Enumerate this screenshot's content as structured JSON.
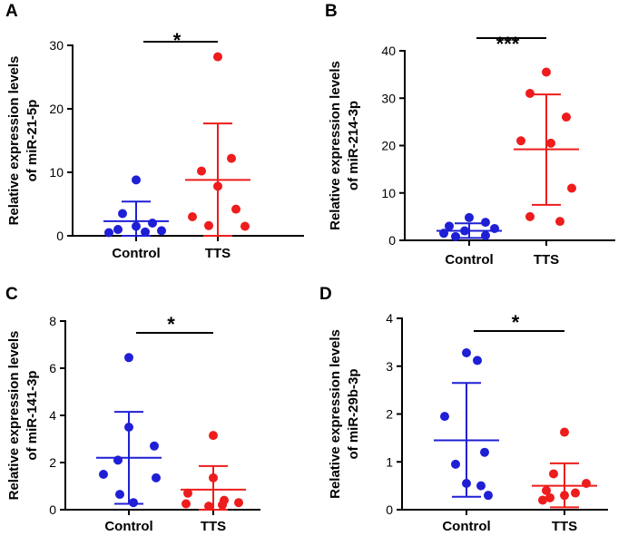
{
  "figure": {
    "panels": [
      "A",
      "B",
      "C",
      "D"
    ]
  },
  "colors": {
    "control": "#1f1fd6",
    "tts": "#ee1c1c"
  },
  "chart_data": [
    {
      "panel": "A",
      "type": "scatter",
      "ylabel_line1": "Relative expression levels",
      "ylabel_line2": "of miR-21-5p",
      "categories": [
        "Control",
        "TTS"
      ],
      "ylim": [
        0,
        30
      ],
      "yticks": [
        0,
        10,
        20,
        30
      ],
      "significance": "*",
      "series": [
        {
          "name": "Control",
          "values": [
            8.8,
            3.5,
            2.0,
            1.5,
            1.0,
            0.8,
            0.6,
            0.5
          ],
          "mean": 2.3,
          "sd_low": 0.0,
          "sd_high": 5.4
        },
        {
          "name": "TTS",
          "values": [
            28.2,
            12.2,
            10.2,
            7.8,
            4.2,
            3.0,
            1.6,
            1.5
          ],
          "mean": 8.8,
          "sd_low": 0.0,
          "sd_high": 17.7
        }
      ]
    },
    {
      "panel": "B",
      "type": "scatter",
      "ylabel_line1": "Relative expression levels",
      "ylabel_line2": "of miR-214-3p",
      "categories": [
        "Control",
        "TTS"
      ],
      "ylim": [
        0,
        40
      ],
      "yticks": [
        0,
        10,
        20,
        30,
        40
      ],
      "significance": "***",
      "series": [
        {
          "name": "Control",
          "values": [
            4.8,
            3.8,
            3.0,
            2.5,
            2.0,
            1.5,
            1.0,
            0.8
          ],
          "mean": 2.0,
          "sd_low": 0.5,
          "sd_high": 3.6
        },
        {
          "name": "TTS",
          "values": [
            35.5,
            31.0,
            26.0,
            21.0,
            20.5,
            11.0,
            5.0,
            4.0
          ],
          "mean": 19.2,
          "sd_low": 7.5,
          "sd_high": 30.8
        }
      ]
    },
    {
      "panel": "C",
      "type": "scatter",
      "ylabel_line1": "Relative expression levels",
      "ylabel_line2": "of miR-141-3p",
      "categories": [
        "Control",
        "TTS"
      ],
      "ylim": [
        0,
        8
      ],
      "yticks": [
        0,
        2,
        4,
        6,
        8
      ],
      "significance": "*",
      "series": [
        {
          "name": "Control",
          "values": [
            6.45,
            3.5,
            2.7,
            2.1,
            1.5,
            1.35,
            0.65,
            0.3
          ],
          "mean": 2.2,
          "sd_low": 0.25,
          "sd_high": 4.15
        },
        {
          "name": "TTS",
          "values": [
            3.15,
            1.35,
            0.7,
            0.4,
            0.3,
            0.25,
            0.2,
            0.15
          ],
          "mean": 0.85,
          "sd_low": 0.0,
          "sd_high": 1.85
        }
      ]
    },
    {
      "panel": "D",
      "type": "scatter",
      "ylabel_line1": "Relative expression levels",
      "ylabel_line2": "of miR-29b-3p",
      "categories": [
        "Control",
        "TTS"
      ],
      "ylim": [
        0,
        4
      ],
      "yticks": [
        0,
        1,
        2,
        3,
        4
      ],
      "significance": "*",
      "series": [
        {
          "name": "Control",
          "values": [
            3.28,
            3.12,
            1.95,
            1.2,
            0.95,
            0.55,
            0.5,
            0.3
          ],
          "mean": 1.45,
          "sd_low": 0.27,
          "sd_high": 2.65
        },
        {
          "name": "TTS",
          "values": [
            1.62,
            0.75,
            0.55,
            0.4,
            0.35,
            0.3,
            0.25,
            0.2
          ],
          "mean": 0.5,
          "sd_low": 0.05,
          "sd_high": 0.97
        }
      ]
    }
  ]
}
